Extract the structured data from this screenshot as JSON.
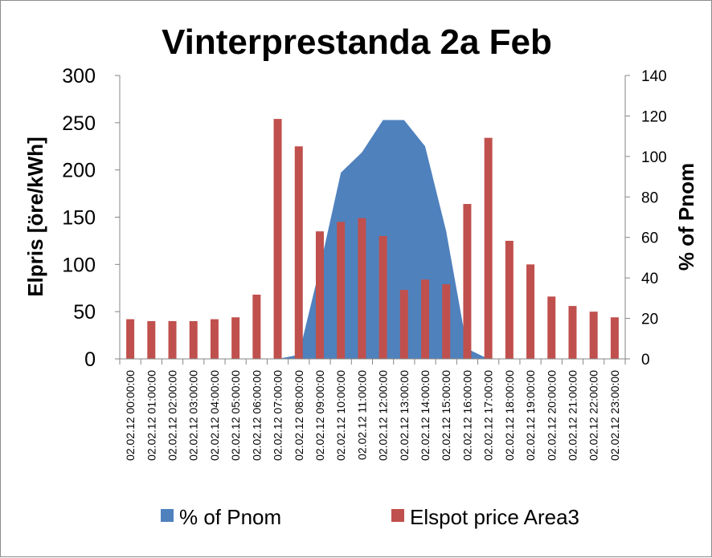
{
  "chart_data": {
    "type": "bar",
    "title": "Vinterprestanda 2a Feb",
    "ylabel": "Elpris [öre/kWh]",
    "y2label": "% of Pnom",
    "ylim": [
      0,
      300
    ],
    "y2lim": [
      0,
      140
    ],
    "yticks": [
      "0",
      "50",
      "100",
      "150",
      "200",
      "250",
      "300"
    ],
    "y2ticks": [
      "0",
      "20",
      "40",
      "60",
      "80",
      "100",
      "120",
      "140"
    ],
    "grid": false,
    "legend_position": "bottom",
    "categories": [
      "02.02.12 00:00:00",
      "02.02.12 01:00:00",
      "02.02.12 02:00:00",
      "02.02.12 03:00:00",
      "02.02.12 04:00:00",
      "02.02.12 05:00:00",
      "02.02.12 06:00:00",
      "02.02.12 07:00:00",
      "02.02.12 08:00:00",
      "02.02.12 09:00:00",
      "02.02.12 10:00:00",
      "02.02.12 11:00:00",
      "02.02.12 12:00:00",
      "02.02.12 13:00:00",
      "02.02.12 14:00:00",
      "02.02.12 15:00:00",
      "02.02.12 16:00:00",
      "02.02.12 17:00:00",
      "02.02.12 18:00:00",
      "02.02.12 19:00:00",
      "02.02.12 20:00:00",
      "02.02.12 21:00:00",
      "02.02.12 22:00:00",
      "02.02.12 23:00:00"
    ],
    "series": [
      {
        "name": "% of Pnom",
        "type": "area",
        "axis": "right",
        "color": "#4F81BD",
        "values": [
          0,
          0,
          0,
          0,
          0,
          0,
          0,
          0,
          2,
          45,
          92,
          102,
          118,
          118,
          105,
          63,
          5,
          0,
          0,
          0,
          0,
          0,
          0,
          0
        ]
      },
      {
        "name": "Elspot price Area3",
        "type": "bar",
        "axis": "left",
        "color": "#C0504D",
        "values": [
          42,
          40,
          40,
          40,
          42,
          44,
          68,
          254,
          225,
          135,
          145,
          149,
          130,
          73,
          84,
          79,
          164,
          234,
          125,
          100,
          66,
          56,
          50,
          44
        ]
      }
    ]
  }
}
